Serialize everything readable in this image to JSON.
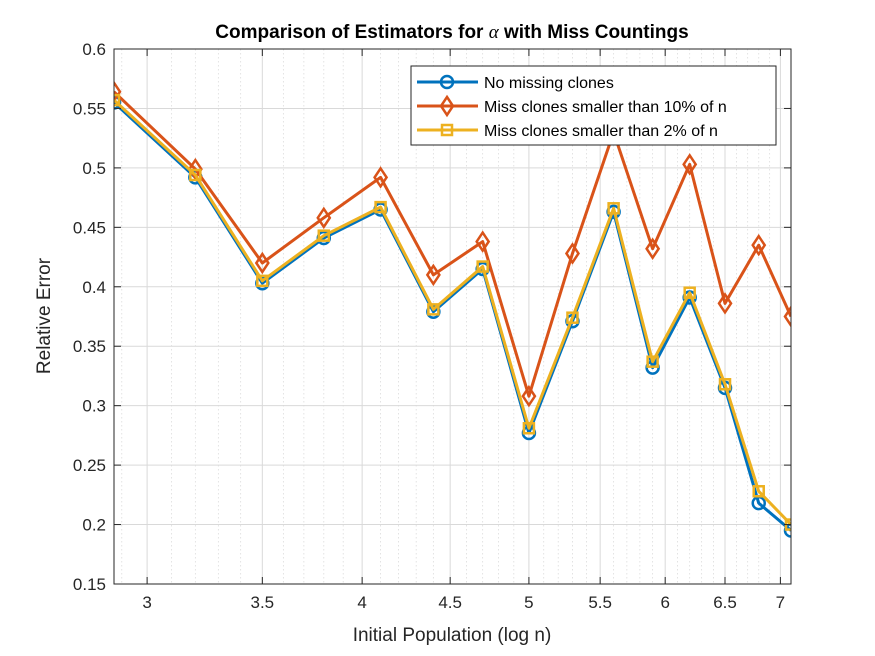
{
  "chart_data": {
    "type": "line",
    "title_prefix": "Comparison of Estimators for ",
    "title_symbol": "α",
    "title_suffix": " with Miss Countings",
    "xlabel": "Initial Population (log n)",
    "ylabel": "Relative Error",
    "xscale": "log",
    "xlim": [
      2.87,
      7.1
    ],
    "ylim": [
      0.15,
      0.6
    ],
    "x_ticks": [
      3,
      3.5,
      4,
      4.5,
      5,
      5.5,
      6,
      6.5,
      7
    ],
    "x_tick_labels": [
      "3",
      "3.5",
      "4",
      "4.5",
      "5",
      "5.5",
      "6",
      "6.5",
      "7"
    ],
    "y_ticks": [
      0.15,
      0.2,
      0.25,
      0.3,
      0.35,
      0.4,
      0.45,
      0.5,
      0.55,
      0.6
    ],
    "y_tick_labels": [
      "0.15",
      "0.2",
      "0.25",
      "0.3",
      "0.35",
      "0.4",
      "0.45",
      "0.5",
      "0.55",
      "0.6"
    ],
    "grid": true,
    "legend_position": "top-right",
    "x": [
      2.87,
      3.2,
      3.5,
      3.8,
      4.1,
      4.4,
      4.7,
      5.0,
      5.3,
      5.6,
      5.9,
      6.2,
      6.5,
      6.8,
      7.1
    ],
    "series": [
      {
        "name": "No missing clones",
        "color": "#0072BD",
        "marker": "circle",
        "values": [
          0.555,
          0.492,
          0.403,
          0.441,
          0.465,
          0.379,
          0.415,
          0.277,
          0.371,
          0.463,
          0.332,
          0.391,
          0.315,
          0.218,
          0.195
        ]
      },
      {
        "name": "Miss clones smaller than 10% of n",
        "color": "#D95319",
        "marker": "diamond",
        "values": [
          0.564,
          0.499,
          0.42,
          0.458,
          0.492,
          0.41,
          0.438,
          0.308,
          0.428,
          0.53,
          0.432,
          0.503,
          0.386,
          0.435,
          0.375
        ]
      },
      {
        "name": "Miss clones smaller than 2% of n",
        "color": "#EDB120",
        "marker": "square",
        "values": [
          0.557,
          0.494,
          0.405,
          0.443,
          0.467,
          0.381,
          0.417,
          0.281,
          0.374,
          0.466,
          0.337,
          0.395,
          0.318,
          0.228,
          0.2
        ]
      }
    ]
  }
}
